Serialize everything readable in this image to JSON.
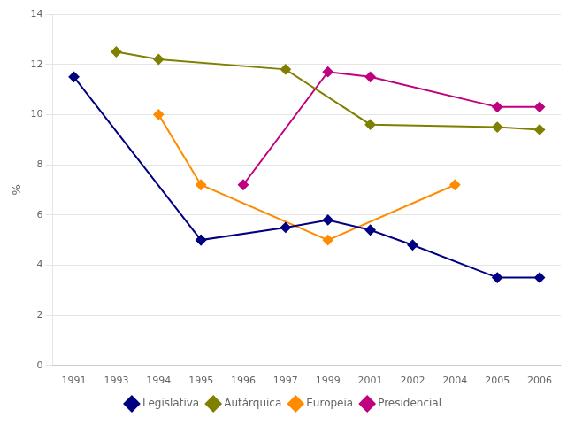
{
  "chart_data": {
    "type": "line",
    "ylabel": "%",
    "categories": [
      "1991",
      "1993",
      "1994",
      "1995",
      "1996",
      "1997",
      "1999",
      "2001",
      "2002",
      "2004",
      "2005",
      "2006"
    ],
    "series": [
      {
        "name": "Legislativa",
        "color": "#000080",
        "marker": "diamond",
        "x": [
          "1991",
          "1995",
          "1995",
          "1997",
          "1999",
          "2001",
          "2002",
          "2005",
          "2006"
        ],
        "values": [
          11.5,
          5.0,
          5.0,
          5.5,
          5.8,
          5.4,
          4.8,
          3.5,
          3.5
        ]
      },
      {
        "name": "Autárquica",
        "color": "#808000",
        "marker": "diamond",
        "x": [
          "1993",
          "1994",
          "1997",
          "2001",
          "2005",
          "2006"
        ],
        "values": [
          12.5,
          12.2,
          11.8,
          9.6,
          9.5,
          9.4
        ]
      },
      {
        "name": "Europeia",
        "color": "#FF8C00",
        "marker": "diamond",
        "x": [
          "1994",
          "1995",
          "1999",
          "2004"
        ],
        "values": [
          10.0,
          7.2,
          5.0,
          7.2
        ]
      },
      {
        "name": "Presidencial",
        "color": "#C00080",
        "marker": "diamond",
        "x": [
          "1996",
          "1999",
          "2001",
          "2005",
          "2006"
        ],
        "values": [
          7.2,
          11.7,
          11.5,
          10.3,
          10.3
        ]
      }
    ],
    "ylim": [
      0,
      14
    ],
    "yticks": [
      0,
      2,
      4,
      6,
      8,
      10,
      12,
      14
    ],
    "grid": "y",
    "legend": "bottom"
  }
}
